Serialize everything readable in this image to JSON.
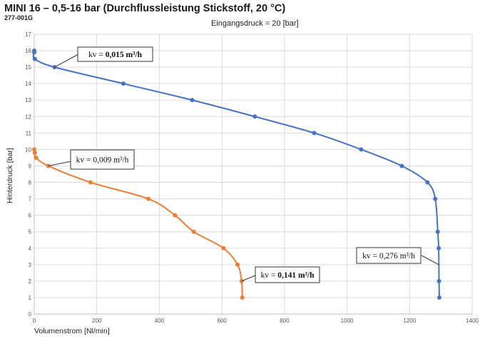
{
  "header": {
    "title": "MINI 16 – 0,5-16 bar (Durchflussleistung Stickstoff, 20 °C)",
    "code": "277-001G",
    "subtitle": "Eingangsdruck = 20 [bar]"
  },
  "chart_data": {
    "type": "line",
    "title": "MINI 16 – 0,5-16 bar (Durchflussleistung Stickstoff, 20 °C)",
    "subtitle": "Eingangsdruck = 20 [bar]",
    "xlabel": "Volumenstrom [Nl/min]",
    "ylabel": "Hinterdruck [bar]",
    "xlim": [
      0,
      1400
    ],
    "ylim": [
      0,
      17
    ],
    "xticks": [
      0,
      200,
      400,
      600,
      800,
      1000,
      1200,
      1400
    ],
    "yticks": [
      0,
      1,
      2,
      3,
      4,
      5,
      6,
      7,
      8,
      9,
      10,
      11,
      12,
      13,
      14,
      15,
      16,
      17
    ],
    "grid": true,
    "series": [
      {
        "name": "blue",
        "color": "#4472c4",
        "points": [
          [
            0,
            16
          ],
          [
            0,
            15.9
          ],
          [
            2,
            15.5
          ],
          [
            65,
            15
          ],
          [
            285,
            14
          ],
          [
            505,
            13
          ],
          [
            705,
            12
          ],
          [
            895,
            11
          ],
          [
            1045,
            10
          ],
          [
            1175,
            9
          ],
          [
            1257,
            8
          ],
          [
            1282,
            7
          ],
          [
            1290,
            5
          ],
          [
            1293,
            4
          ],
          [
            1294,
            2
          ],
          [
            1295,
            1
          ]
        ]
      },
      {
        "name": "orange",
        "color": "#ed7d31",
        "points": [
          [
            0,
            10
          ],
          [
            2,
            9.8
          ],
          [
            6,
            9.5
          ],
          [
            45,
            9
          ],
          [
            180,
            8
          ],
          [
            365,
            7
          ],
          [
            450,
            6
          ],
          [
            510,
            5
          ],
          [
            605,
            4
          ],
          [
            650,
            3
          ],
          [
            663,
            2
          ],
          [
            665,
            1
          ]
        ]
      }
    ],
    "annotations": [
      {
        "series": "blue",
        "at": [
          65,
          15
        ],
        "text_prefix": "kv = ",
        "text_value": "0,015 m³/h",
        "bold_value": true
      },
      {
        "series": "orange",
        "at": [
          45,
          9
        ],
        "text_prefix": "kv = ",
        "text_value": "0,009 m³/h",
        "bold_value": false
      },
      {
        "series": "orange",
        "at": [
          663,
          2
        ],
        "text_prefix": "kv = ",
        "text_value": "0,141 m³/h",
        "bold_value": true
      },
      {
        "series": "blue",
        "at": [
          1293,
          3
        ],
        "text_prefix": "kv = ",
        "text_value": "0,276 m³/h",
        "bold_value": false
      }
    ]
  }
}
